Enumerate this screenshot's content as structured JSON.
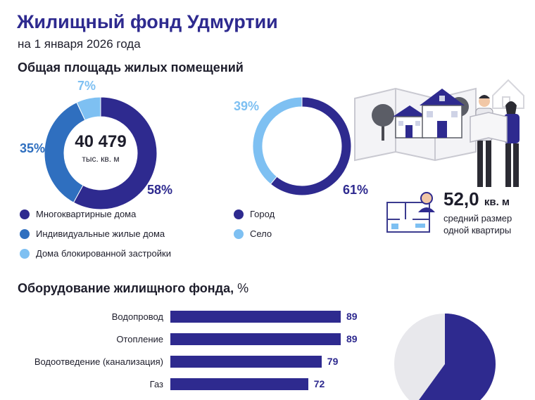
{
  "header": {
    "title": "Жилищный фонд Удмуртии",
    "subtitle": "на 1 января 2026 года"
  },
  "area_section": {
    "title": "Общая площадь жилых помещений"
  },
  "equipment_section": {
    "title": "Оборудование жилищного фонда,",
    "unit": "%"
  },
  "stat": {
    "value": "52,0",
    "unit": "кв. м",
    "desc_line1": "средний размер",
    "desc_line2": "одной квартиры"
  },
  "colors": {
    "dark": "#2e2a8f",
    "mid": "#2f6fbf",
    "light": "#7ec0f2",
    "bar": "#2e2a8f"
  },
  "chart_data": [
    {
      "type": "pie",
      "title": "",
      "center_value": "40 479",
      "center_unit": "тыс. кв. м",
      "slices": [
        {
          "label": "Многоквартирные дома",
          "value": 58,
          "pct_label": "58%"
        },
        {
          "label": "Индивидуальные жилые дома",
          "value": 35,
          "pct_label": "35%"
        },
        {
          "label": "Дома блокированной застройки",
          "value": 7,
          "pct_label": "7%"
        }
      ]
    },
    {
      "type": "pie",
      "title": "",
      "slices": [
        {
          "label": "Город",
          "value": 61,
          "pct_label": "61%"
        },
        {
          "label": "Село",
          "value": 39,
          "pct_label": "39%"
        }
      ]
    },
    {
      "type": "bar",
      "orientation": "horizontal",
      "categories": [
        "Водопровод",
        "Отопление",
        "Водоотведение (канализация)",
        "Газ"
      ],
      "values": [
        89,
        89,
        79,
        72
      ],
      "xlim": [
        0,
        100
      ]
    }
  ]
}
